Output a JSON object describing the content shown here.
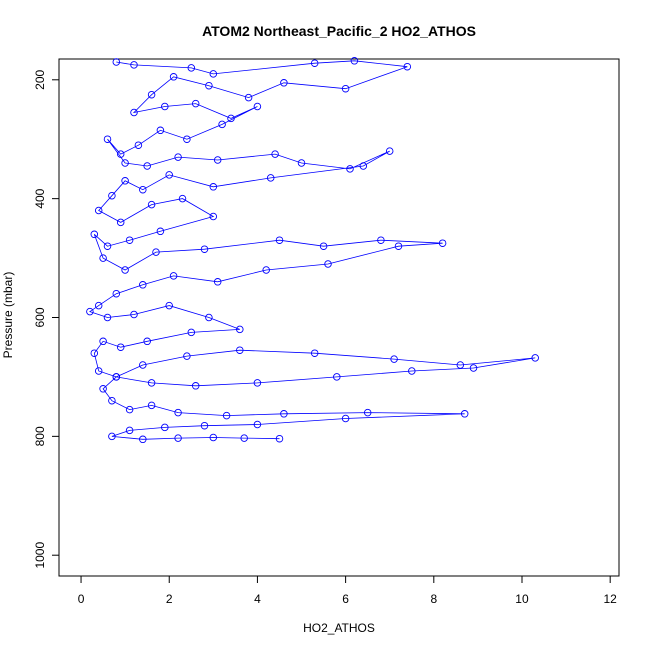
{
  "chart_data": {
    "type": "scatter",
    "title": "ATOM2 Northeast_Pacific_2 HO2_ATHOS",
    "xlabel": "HO2_ATHOS",
    "ylabel": "Pressure (mbar)",
    "xlim": [
      -0.5,
      12.2
    ],
    "ylim": [
      1035,
      165
    ],
    "y_reversed": true,
    "x_ticks": [
      0,
      2,
      4,
      6,
      8,
      10,
      12
    ],
    "y_ticks": [
      200,
      400,
      600,
      800,
      1000
    ],
    "grid": false,
    "legend": "none",
    "color": "#0000ff",
    "series": [
      {
        "x": [
          0.8,
          1.2,
          2.5,
          3.0,
          5.3,
          6.2,
          7.4,
          6.0,
          4.6,
          3.8,
          2.9,
          2.1,
          1.6,
          1.2,
          1.9,
          2.6,
          3.4,
          4.0,
          3.2,
          2.4,
          1.8,
          1.3,
          0.9,
          0.6,
          1.0,
          1.5,
          2.2,
          3.1,
          4.4,
          5.0,
          6.1,
          7.0,
          6.4,
          4.3,
          3.0,
          2.0,
          1.4,
          1.0,
          0.7,
          0.4,
          0.9,
          1.6,
          2.3,
          3.0,
          1.8,
          1.1,
          0.6,
          0.3,
          0.5,
          1.0,
          1.7,
          2.8,
          4.5,
          5.5,
          6.8,
          8.2,
          7.2,
          5.6,
          4.2,
          3.1,
          2.1,
          1.4,
          0.8,
          0.4,
          0.2,
          0.6,
          1.2,
          2.0,
          2.9,
          3.6,
          2.5,
          1.5,
          0.9,
          0.5,
          0.3,
          0.4,
          0.8,
          1.6,
          2.6,
          4.0,
          5.8,
          7.5,
          8.9,
          10.3,
          8.6,
          7.1,
          5.3,
          3.6,
          2.4,
          1.4,
          0.8,
          0.5,
          0.7,
          1.1,
          1.6,
          2.2,
          3.3,
          4.6,
          6.5,
          8.7,
          6.0,
          4.0,
          2.8,
          1.9,
          1.1,
          0.7,
          1.4,
          2.2,
          3.0,
          3.7,
          4.5
        ],
        "y": [
          170,
          175,
          180,
          190,
          172,
          168,
          178,
          215,
          205,
          230,
          210,
          195,
          225,
          255,
          245,
          240,
          265,
          245,
          275,
          300,
          285,
          310,
          325,
          300,
          340,
          345,
          330,
          335,
          325,
          340,
          350,
          320,
          345,
          365,
          380,
          360,
          385,
          370,
          395,
          420,
          440,
          410,
          400,
          430,
          455,
          470,
          480,
          460,
          500,
          520,
          490,
          485,
          470,
          480,
          470,
          475,
          480,
          510,
          520,
          540,
          530,
          545,
          560,
          580,
          590,
          600,
          595,
          580,
          600,
          620,
          625,
          640,
          650,
          640,
          660,
          690,
          700,
          710,
          715,
          710,
          700,
          690,
          685,
          668,
          680,
          670,
          660,
          655,
          665,
          680,
          700,
          720,
          740,
          755,
          748,
          760,
          765,
          762,
          760,
          762,
          770,
          780,
          782,
          785,
          790,
          800,
          805,
          803,
          802,
          803,
          804
        ]
      }
    ]
  }
}
